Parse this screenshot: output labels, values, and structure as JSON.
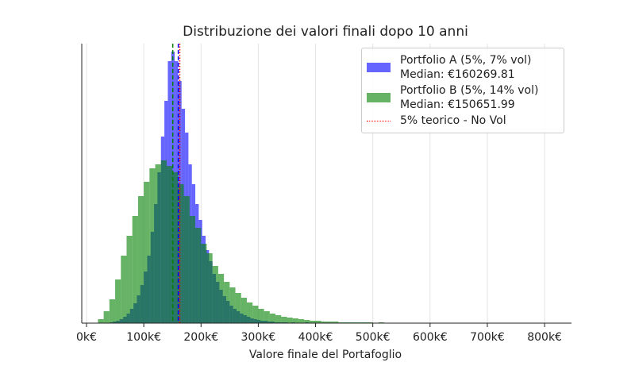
{
  "chart_data": {
    "type": "histogram",
    "title": "Distribuzione dei valori finali dopo 10 anni",
    "xlabel": "Valore finale del Portafoglio",
    "xlim": [
      -8300,
      847000
    ],
    "xticks": [
      {
        "value": 0,
        "label": "0k€"
      },
      {
        "value": 100000,
        "label": "100k€"
      },
      {
        "value": 200000,
        "label": "200k€"
      },
      {
        "value": 300000,
        "label": "300k€"
      },
      {
        "value": 400000,
        "label": "400k€"
      },
      {
        "value": 500000,
        "label": "500k€"
      },
      {
        "value": 600000,
        "label": "600k€"
      },
      {
        "value": 700000,
        "label": "700k€"
      },
      {
        "value": 800000,
        "label": "800k€"
      }
    ],
    "ylim": [
      0,
      352
    ],
    "grid": true,
    "legend": "upper right",
    "series": [
      {
        "name": "Portfolio A (5%, 7% vol)\nMedian: €160269.81",
        "color": "#0000ff",
        "bins": [
          40000,
          46000,
          52000,
          58000,
          64000,
          70000,
          76000,
          82000,
          88000,
          94000,
          100000,
          106000,
          112000,
          118000,
          124000,
          130000,
          136000,
          142000,
          148000,
          154000,
          160000,
          166000,
          172000,
          178000,
          184000,
          190000,
          196000,
          202000,
          208000,
          214000,
          220000,
          226000,
          232000,
          238000,
          244000,
          250000,
          256000,
          262000,
          268000,
          274000,
          280000,
          286000,
          292000,
          298000,
          304000,
          310000,
          316000,
          322000,
          328000,
          334000,
          340000,
          346000,
          352000,
          358000,
          364000,
          370000,
          376000,
          382000,
          388000,
          394000,
          400000
        ],
        "values": [
          1,
          2,
          3,
          5,
          8,
          12,
          18,
          25,
          35,
          48,
          65,
          85,
          115,
          150,
          190,
          235,
          280,
          330,
          342,
          330,
          305,
          270,
          240,
          200,
          175,
          150,
          130,
          110,
          92,
          78,
          62,
          52,
          42,
          34,
          28,
          22,
          18,
          15,
          12,
          10,
          8,
          6,
          5,
          4,
          3,
          3,
          2,
          2,
          1,
          1,
          1,
          1,
          0,
          1,
          0,
          0,
          0,
          1,
          0,
          0
        ]
      },
      {
        "name": "Portfolio B (5%, 14% vol)\nMedian: €150651.99",
        "color": "#008000",
        "bins": [
          20000,
          30000,
          40000,
          50000,
          60000,
          70000,
          80000,
          90000,
          100000,
          110000,
          120000,
          130000,
          140000,
          150000,
          160000,
          170000,
          180000,
          190000,
          200000,
          210000,
          220000,
          230000,
          240000,
          250000,
          260000,
          270000,
          280000,
          290000,
          300000,
          310000,
          320000,
          330000,
          340000,
          350000,
          360000,
          370000,
          380000,
          390000,
          400000,
          410000,
          420000,
          430000,
          440000,
          450000,
          460000,
          470000,
          480000,
          490000,
          500000,
          510000,
          520000
        ],
        "values": [
          5,
          15,
          30,
          55,
          85,
          110,
          135,
          160,
          178,
          195,
          200,
          205,
          198,
          190,
          175,
          160,
          135,
          120,
          100,
          88,
          72,
          62,
          52,
          45,
          38,
          32,
          26,
          22,
          18,
          15,
          12,
          10,
          8,
          7,
          6,
          5,
          4,
          3,
          3,
          2,
          2,
          2,
          1,
          1,
          1,
          1,
          1,
          1,
          0,
          1
        ]
      }
    ],
    "vlines": [
      {
        "value": 160269.81,
        "color": "#0000ff",
        "style": "dashed"
      },
      {
        "value": 150651.99,
        "color": "#008000",
        "style": "dashed"
      },
      {
        "value": 162889.46,
        "color": "#ff0000",
        "style": "dotted",
        "name": "5% teorico - No Vol"
      }
    ]
  }
}
